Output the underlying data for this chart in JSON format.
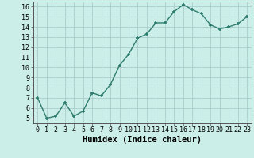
{
  "x": [
    0,
    1,
    2,
    3,
    4,
    5,
    6,
    7,
    8,
    9,
    10,
    11,
    12,
    13,
    14,
    15,
    16,
    17,
    18,
    19,
    20,
    21,
    22,
    23
  ],
  "y": [
    7.0,
    5.0,
    5.2,
    6.5,
    5.2,
    5.7,
    7.5,
    7.2,
    8.3,
    10.2,
    11.3,
    12.9,
    13.3,
    14.4,
    14.4,
    15.5,
    16.2,
    15.7,
    15.3,
    14.2,
    13.8,
    14.0,
    14.3,
    15.0
  ],
  "xlabel": "Humidex (Indice chaleur)",
  "ylim": [
    4.5,
    16.5
  ],
  "xlim": [
    -0.5,
    23.5
  ],
  "yticks": [
    5,
    6,
    7,
    8,
    9,
    10,
    11,
    12,
    13,
    14,
    15,
    16
  ],
  "xticks": [
    0,
    1,
    2,
    3,
    4,
    5,
    6,
    7,
    8,
    9,
    10,
    11,
    12,
    13,
    14,
    15,
    16,
    17,
    18,
    19,
    20,
    21,
    22,
    23
  ],
  "line_color": "#2e7d6e",
  "marker": "+",
  "marker_size": 3.5,
  "line_width": 1.0,
  "bg_color": "#cceee8",
  "grid_color": "#aacccc",
  "xlabel_fontsize": 7.5,
  "tick_fontsize": 6.0
}
